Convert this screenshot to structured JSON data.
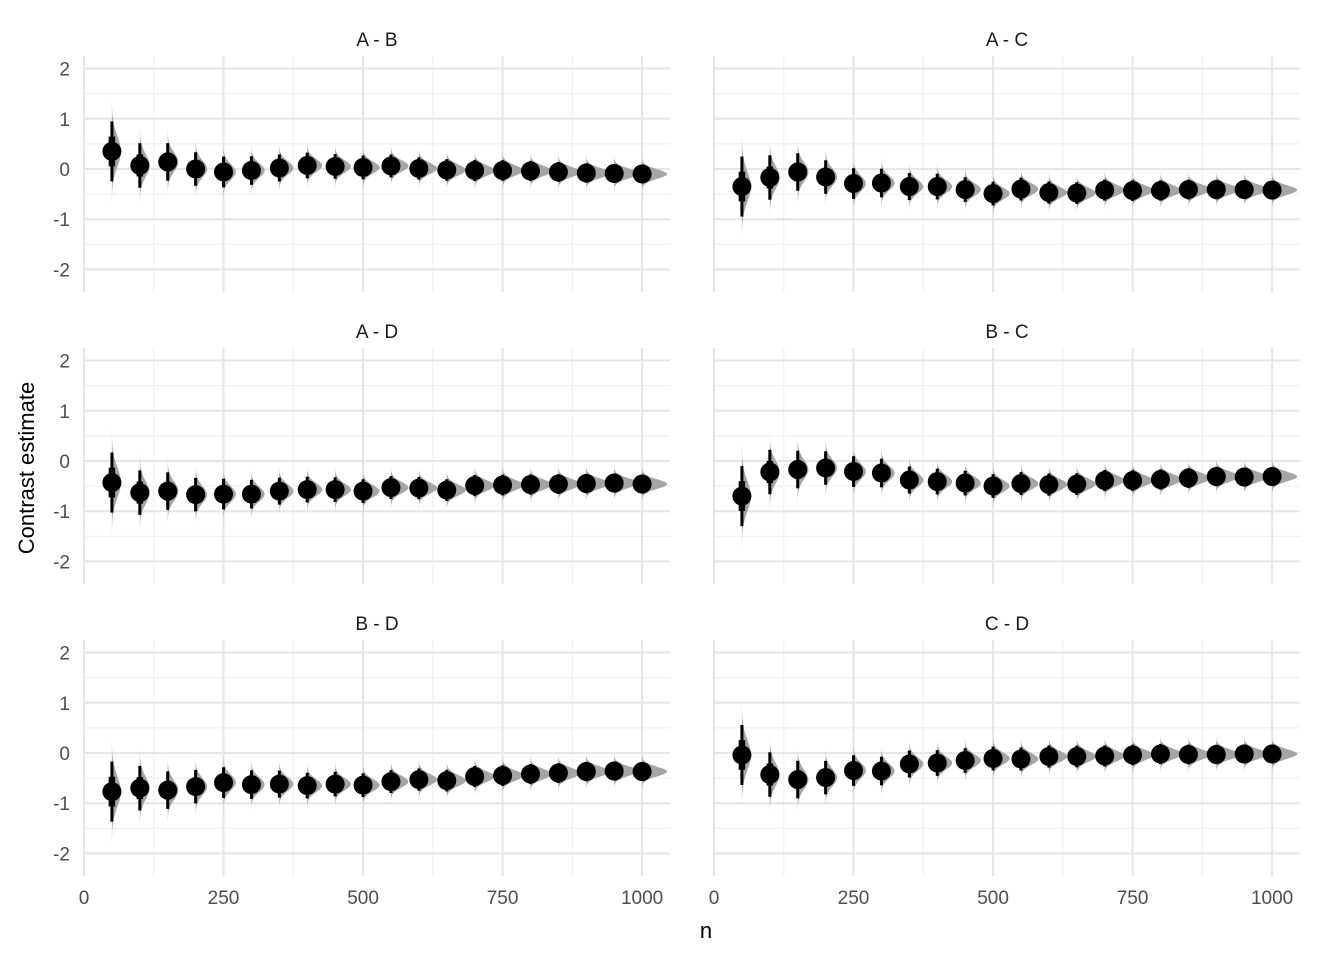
{
  "chart_data": {
    "type": "pointinterval",
    "xlabel": "n",
    "ylabel": "Contrast estimate",
    "xlim": [
      0,
      1050
    ],
    "ylim": [
      -2.45,
      2.25
    ],
    "x_ticks": [
      0,
      250,
      500,
      750,
      1000
    ],
    "x_tick_labels": [
      "0",
      "250",
      "500",
      "750",
      "1000"
    ],
    "y_ticks": [
      -2,
      -1,
      0,
      1,
      2
    ],
    "y_tick_labels": [
      "-2",
      "-1",
      "0",
      "1",
      "2"
    ],
    "grid": true,
    "colors": {
      "point": "#000000",
      "distribution": "#a0a0a0",
      "grid_major": "#e6e6e6",
      "grid_minor": "#f1f1f1",
      "text": "#4d4d4d",
      "title": "#1a1a1a"
    },
    "x": [
      50,
      100,
      150,
      200,
      250,
      300,
      350,
      400,
      450,
      500,
      550,
      600,
      650,
      700,
      750,
      800,
      850,
      900,
      950,
      1000
    ],
    "panels": [
      {
        "title": "A - B",
        "estimates": [
          0.35,
          0.07,
          0.14,
          0.0,
          -0.06,
          -0.03,
          0.02,
          0.07,
          0.05,
          0.03,
          0.06,
          0.01,
          -0.02,
          -0.03,
          -0.03,
          -0.04,
          -0.06,
          -0.08,
          -0.09,
          -0.1
        ]
      },
      {
        "title": "A - C",
        "estimates": [
          -0.35,
          -0.17,
          -0.06,
          -0.16,
          -0.29,
          -0.28,
          -0.35,
          -0.35,
          -0.41,
          -0.49,
          -0.4,
          -0.47,
          -0.48,
          -0.42,
          -0.43,
          -0.43,
          -0.41,
          -0.41,
          -0.41,
          -0.42
        ]
      },
      {
        "title": "A - D",
        "estimates": [
          -0.43,
          -0.63,
          -0.6,
          -0.67,
          -0.66,
          -0.66,
          -0.6,
          -0.57,
          -0.57,
          -0.6,
          -0.53,
          -0.54,
          -0.58,
          -0.49,
          -0.48,
          -0.47,
          -0.46,
          -0.45,
          -0.44,
          -0.46
        ]
      },
      {
        "title": "B - C",
        "estimates": [
          -0.7,
          -0.22,
          -0.17,
          -0.14,
          -0.21,
          -0.24,
          -0.38,
          -0.41,
          -0.44,
          -0.5,
          -0.45,
          -0.47,
          -0.46,
          -0.39,
          -0.39,
          -0.37,
          -0.34,
          -0.31,
          -0.32,
          -0.31
        ]
      },
      {
        "title": "B - D",
        "estimates": [
          -0.77,
          -0.7,
          -0.74,
          -0.67,
          -0.59,
          -0.63,
          -0.62,
          -0.65,
          -0.62,
          -0.64,
          -0.57,
          -0.53,
          -0.55,
          -0.47,
          -0.45,
          -0.42,
          -0.4,
          -0.37,
          -0.36,
          -0.37
        ]
      },
      {
        "title": "C - D",
        "estimates": [
          -0.04,
          -0.43,
          -0.53,
          -0.49,
          -0.35,
          -0.36,
          -0.22,
          -0.2,
          -0.15,
          -0.11,
          -0.12,
          -0.07,
          -0.07,
          -0.06,
          -0.04,
          -0.02,
          -0.03,
          -0.03,
          -0.02,
          -0.02
        ]
      }
    ]
  }
}
